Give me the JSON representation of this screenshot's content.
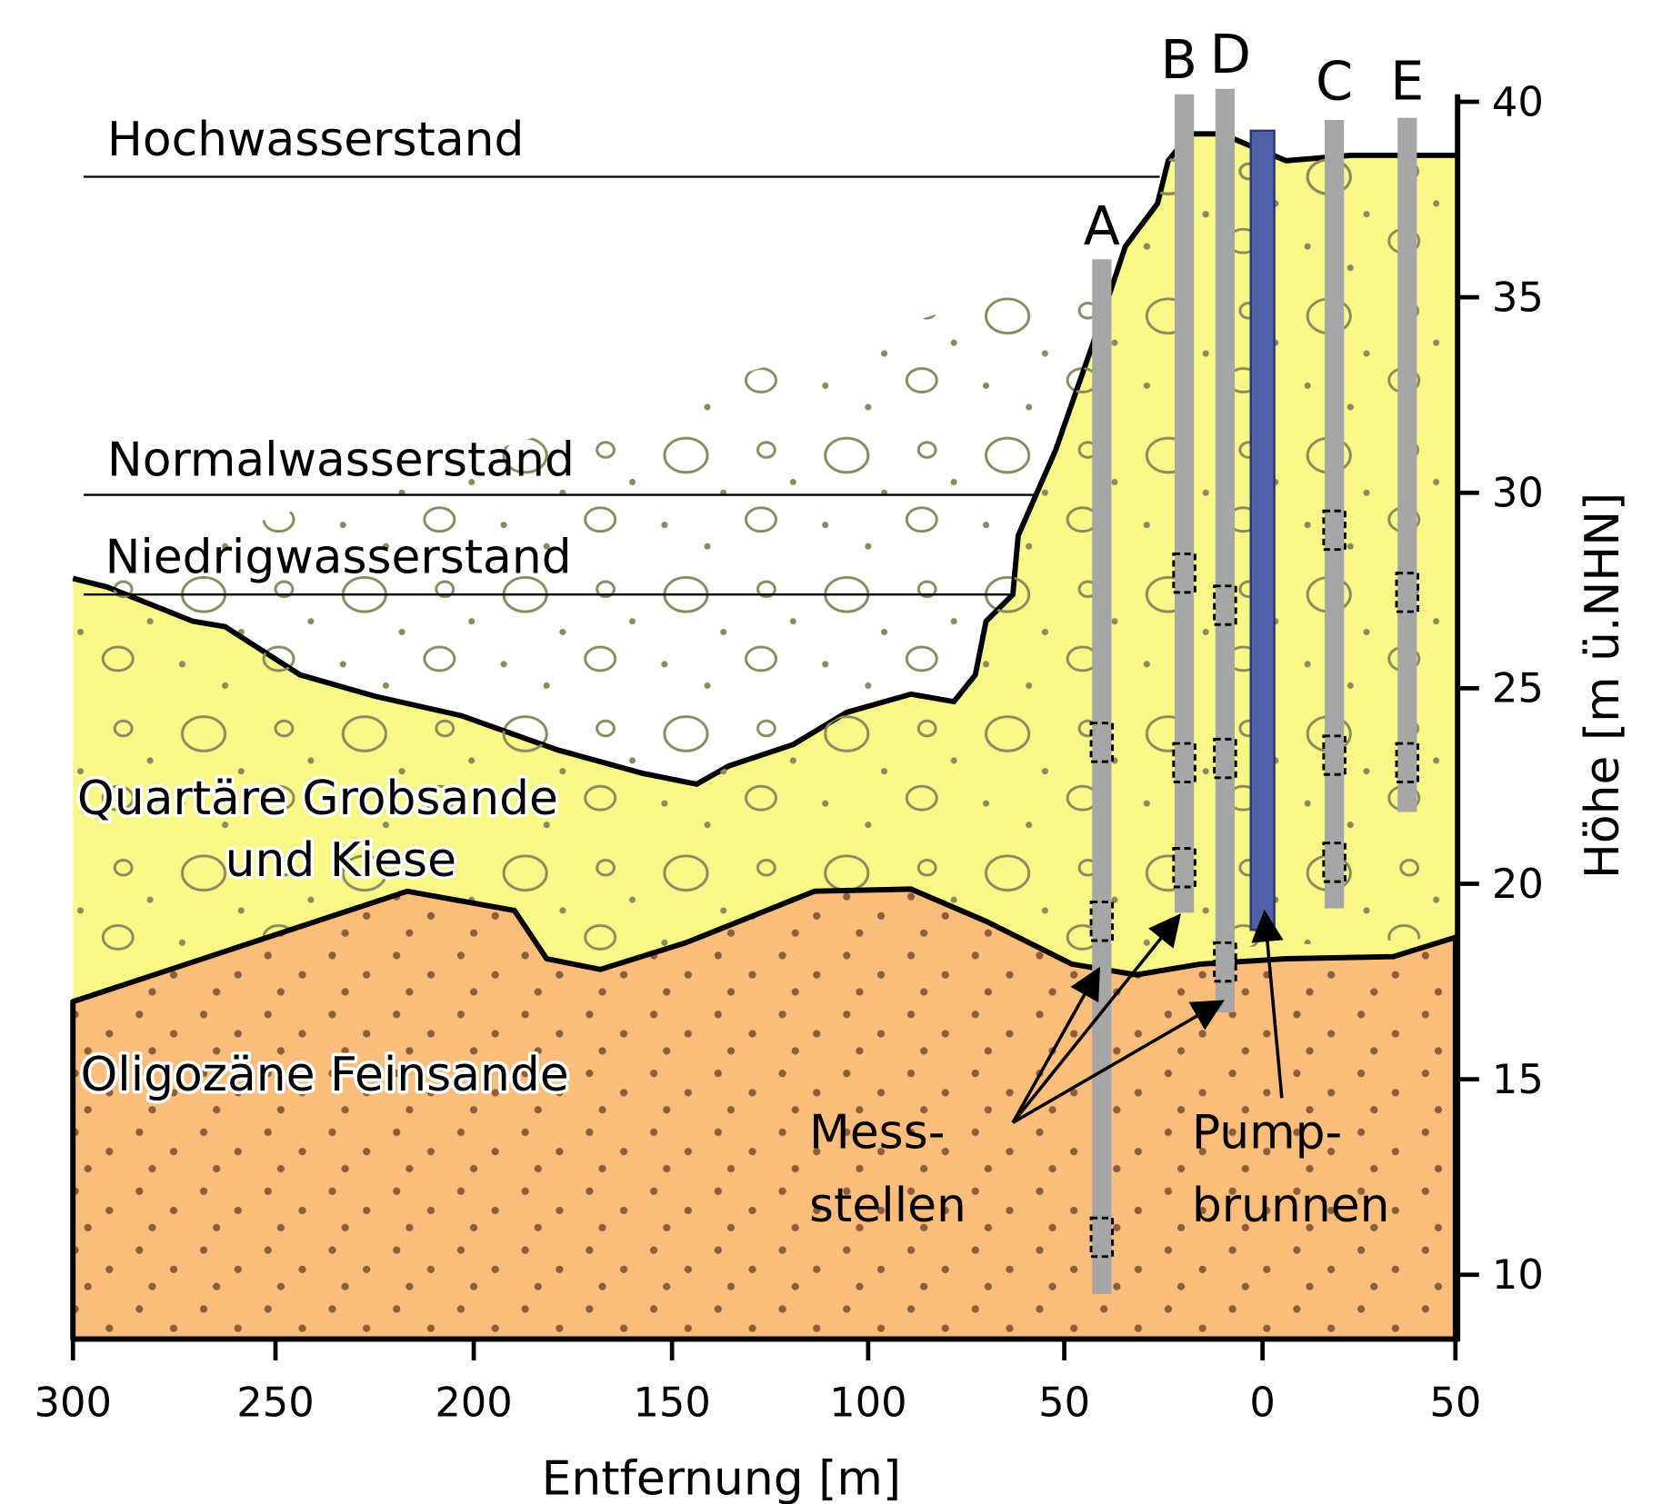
{
  "levels": {
    "high": "Hochwasserstand",
    "normal": "Normalwasserstand",
    "low": "Niedrigwasserstand"
  },
  "layers": {
    "upper": [
      "Quartäre Grobsande",
      "und Kiese"
    ],
    "lower": "Oligozäne Feinsande"
  },
  "wells": [
    "A",
    "B",
    "D",
    "C",
    "E"
  ],
  "annotations": {
    "measuring": [
      "Mess-",
      "stellen"
    ],
    "pump": [
      "Pump-",
      "brunnen"
    ]
  },
  "x_axis": {
    "label": "Entfernung [m]",
    "ticks": [
      "300",
      "250",
      "200",
      "150",
      "100",
      "50",
      "0",
      "50"
    ]
  },
  "y_axis": {
    "label": "Höhe [m ü.NHN]",
    "ticks": [
      "40",
      "35",
      "30",
      "25",
      "20",
      "15",
      "10"
    ]
  }
}
